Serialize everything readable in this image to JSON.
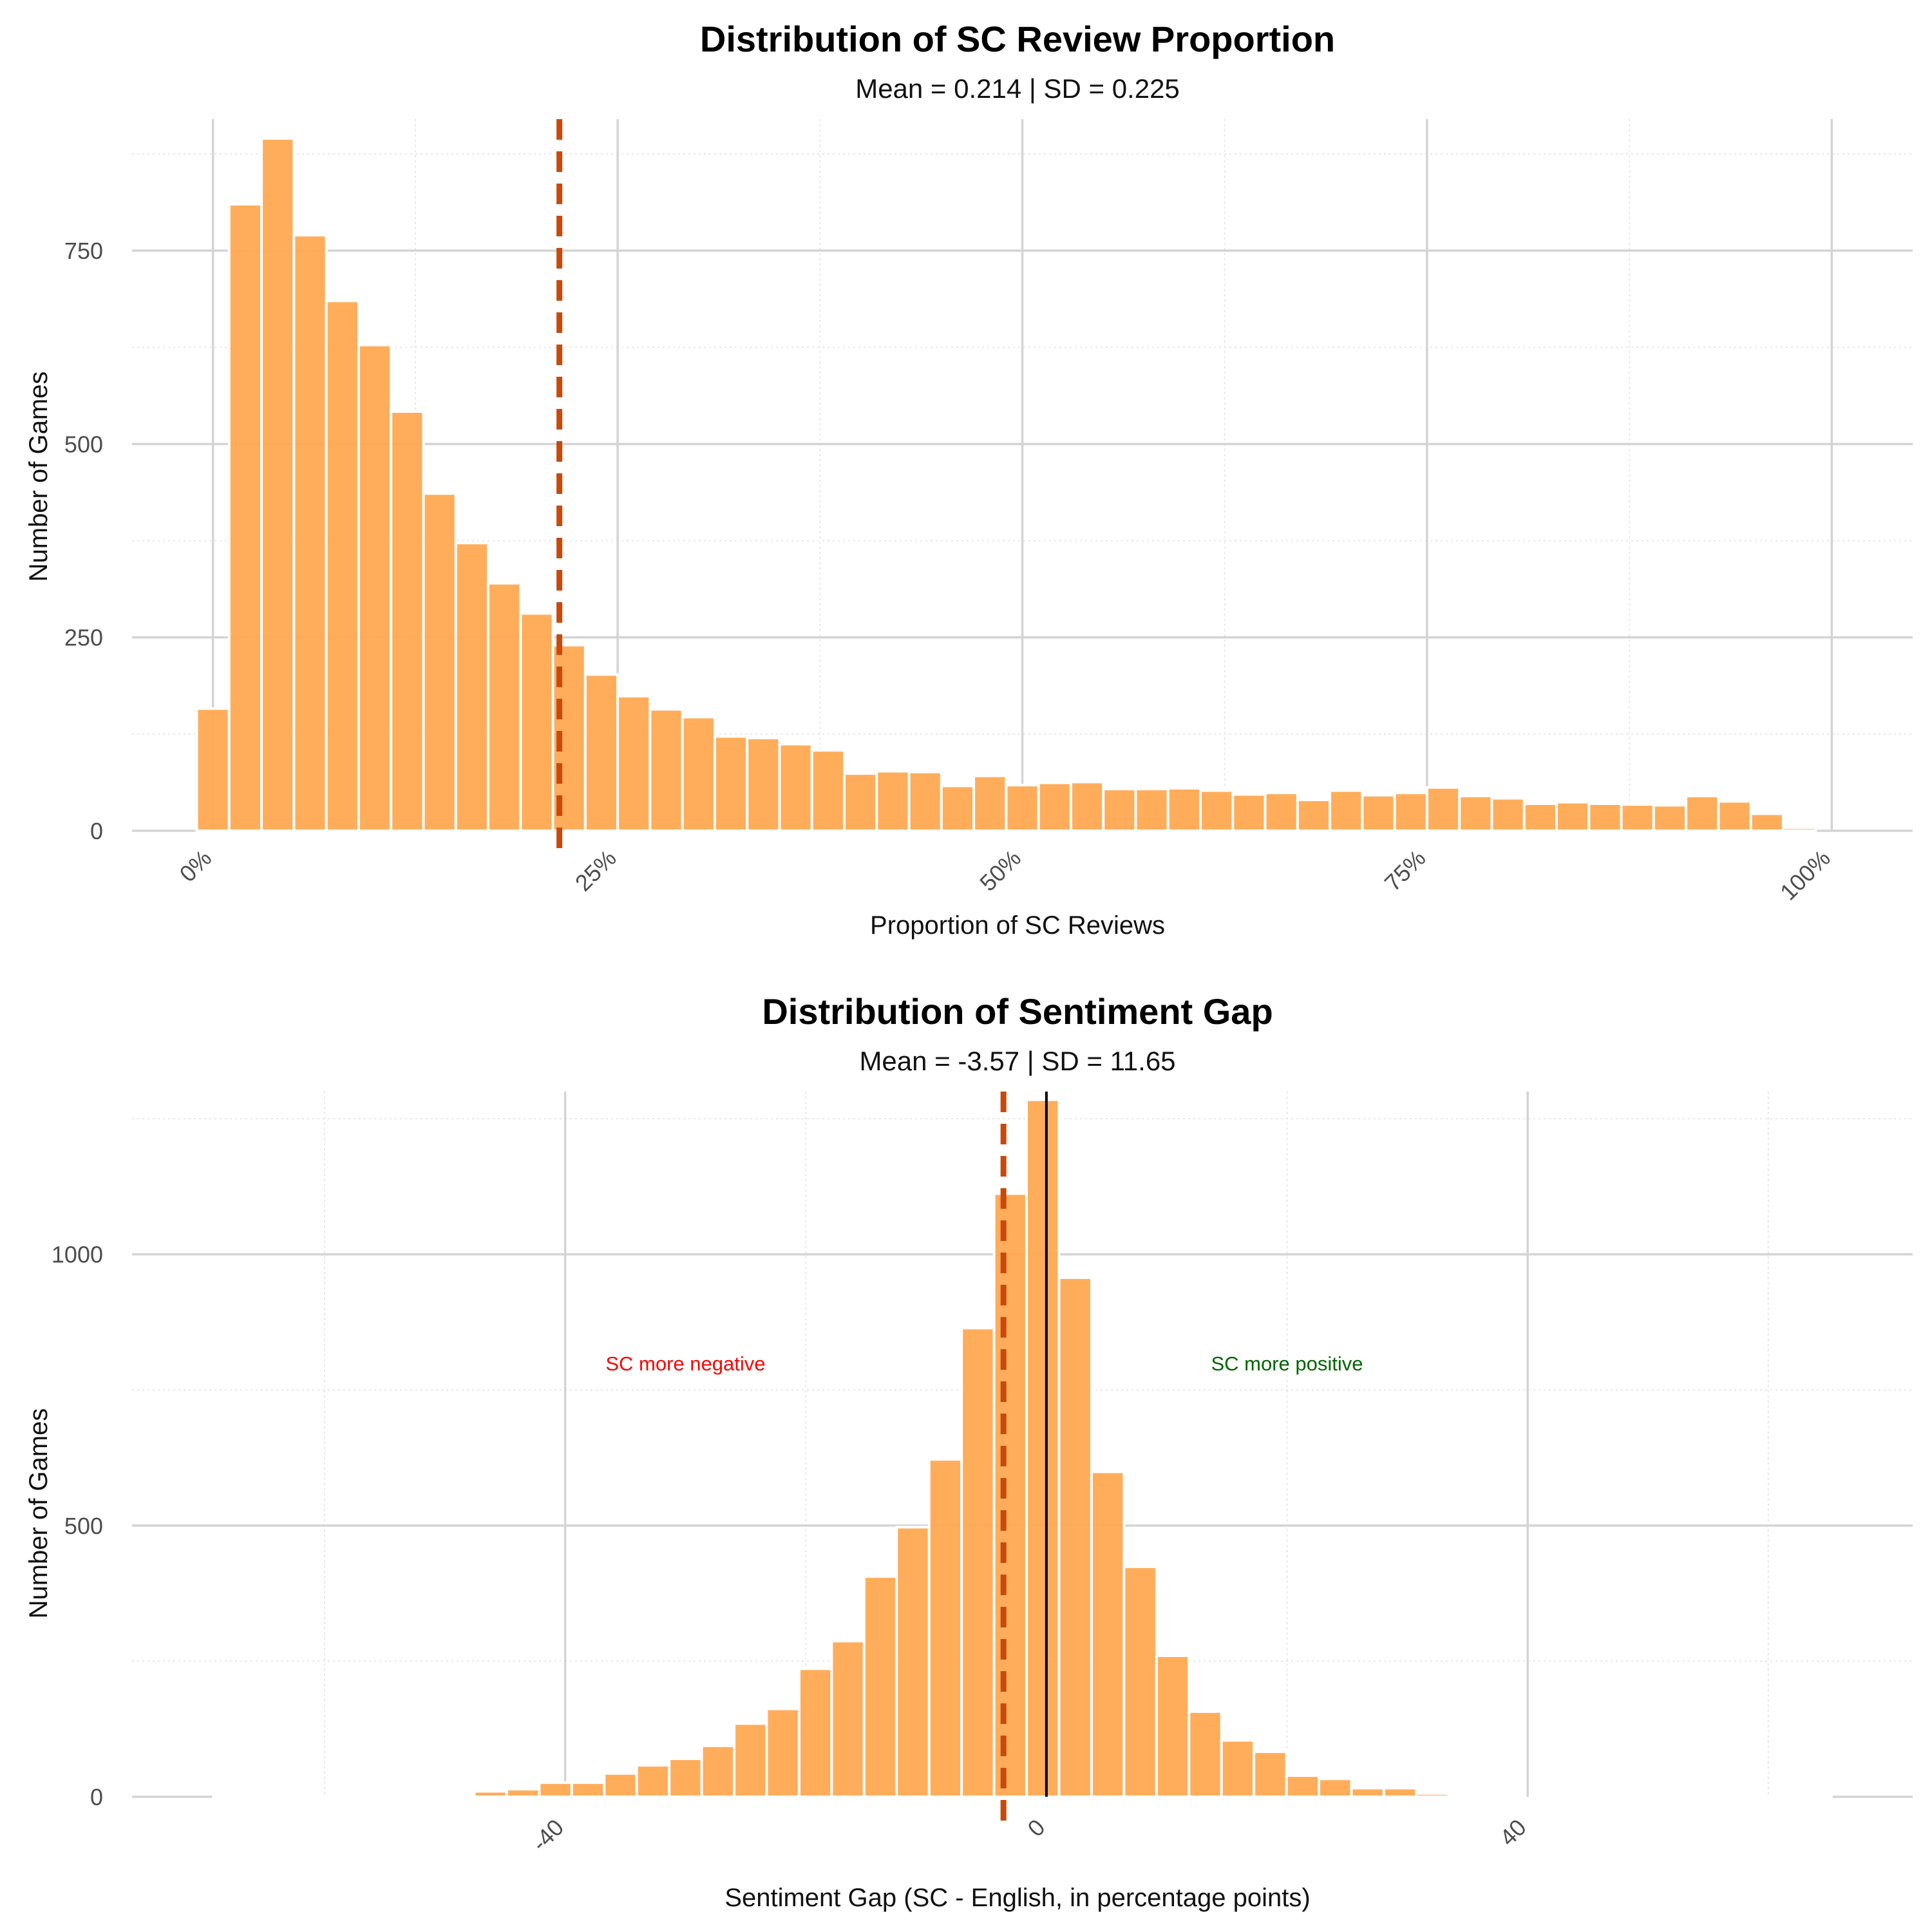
{
  "chart_data": [
    {
      "type": "bar",
      "title": "Distribution of SC Review Proportion",
      "subtitle": "Mean = 0.214 | SD = 0.225",
      "xlabel": "Proportion of SC Reviews",
      "ylabel": "Number of Games",
      "x_ticks": [
        0,
        0.25,
        0.5,
        0.75,
        1.0
      ],
      "x_tick_labels": [
        "0%",
        "25%",
        "50%",
        "75%",
        "100%"
      ],
      "y_ticks": [
        0,
        250,
        500,
        750
      ],
      "y_tick_labels": [
        "0",
        "250",
        "500",
        "750"
      ],
      "xlim": [
        -0.05,
        1.05
      ],
      "ylim": [
        0,
        920
      ],
      "bin_width": 0.02,
      "bin_centers": [
        0.0,
        0.02,
        0.04,
        0.06,
        0.08,
        0.1,
        0.12,
        0.14,
        0.16,
        0.18,
        0.2,
        0.22,
        0.24,
        0.26,
        0.28,
        0.3,
        0.32,
        0.34,
        0.36,
        0.38,
        0.4,
        0.42,
        0.44,
        0.46,
        0.48,
        0.5,
        0.52,
        0.54,
        0.56,
        0.58,
        0.6,
        0.62,
        0.64,
        0.66,
        0.68,
        0.7,
        0.72,
        0.74,
        0.76,
        0.78,
        0.8,
        0.82,
        0.84,
        0.86,
        0.88,
        0.9,
        0.92,
        0.94,
        0.96,
        0.98,
        1.0
      ],
      "values": [
        158,
        810,
        895,
        770,
        685,
        628,
        542,
        436,
        372,
        320,
        281,
        240,
        202,
        174,
        157,
        147,
        122,
        120,
        112,
        104,
        74,
        77,
        76,
        58,
        71,
        59,
        62,
        63,
        54,
        54,
        55,
        52,
        47,
        49,
        40,
        52,
        46,
        49,
        56,
        45,
        42,
        35,
        37,
        35,
        34,
        33,
        45,
        38,
        22,
        4,
        0
      ],
      "mean": 0.214,
      "grid": true,
      "colors": {
        "bar": "#FFA64D",
        "mean_line": "#C84A0A"
      }
    },
    {
      "type": "bar",
      "title": "Distribution of Sentiment Gap",
      "subtitle": "Mean = -3.57 | SD = 11.65",
      "xlabel": "Sentiment Gap (SC - English, in percentage points)",
      "ylabel": "Number of Games",
      "x_ticks": [
        -40,
        0,
        40
      ],
      "x_tick_labels": [
        "-40",
        "0",
        "40"
      ],
      "y_ticks": [
        0,
        500,
        1000
      ],
      "y_tick_labels": [
        "0",
        "500",
        "1000"
      ],
      "xlim": [
        -76,
        72
      ],
      "ylim": [
        0,
        1300
      ],
      "bin_width": 2.7,
      "bin_centers": [
        -46.2,
        -43.5,
        -40.8,
        -38.1,
        -35.4,
        -32.7,
        -30.0,
        -27.3,
        -24.6,
        -21.9,
        -19.2,
        -16.5,
        -13.8,
        -11.1,
        -8.4,
        -5.7,
        -3.0,
        -0.3,
        2.4,
        5.1,
        7.8,
        10.5,
        13.2,
        15.9,
        18.6,
        21.3,
        24.0,
        26.7,
        29.4,
        32.1,
        34.8,
        37.5
      ],
      "values": [
        10,
        14,
        26,
        26,
        43,
        58,
        70,
        94,
        135,
        162,
        236,
        287,
        406,
        497,
        622,
        864,
        1112,
        1285,
        957,
        599,
        424,
        260,
        157,
        104,
        83,
        39,
        33,
        16,
        16,
        6,
        2,
        1
      ],
      "mean": -3.57,
      "reference_line": 0,
      "annotations": [
        {
          "text": "SC more negative",
          "x": -30,
          "y": 800,
          "color": "#FF0000"
        },
        {
          "text": "SC more positive",
          "x": 20,
          "y": 800,
          "color": "#006400"
        }
      ],
      "grid": true,
      "colors": {
        "bar": "#FFA64D",
        "mean_line": "#C84A0A",
        "reference_line": "#000000"
      }
    }
  ]
}
